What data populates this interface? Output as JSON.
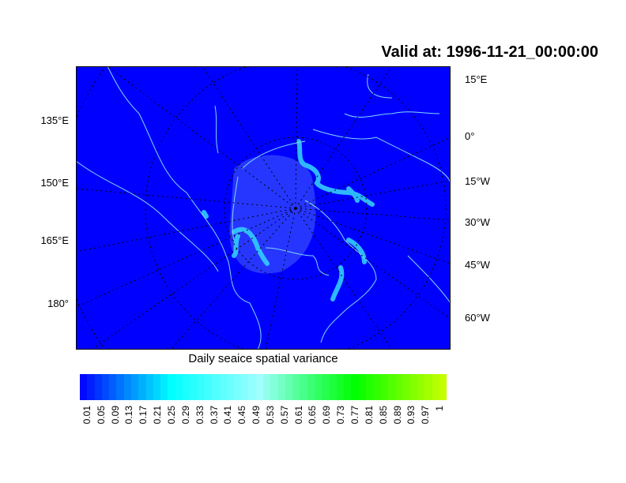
{
  "title": "Valid at: 1996-11-21_00:00:00",
  "map": {
    "projection": "polar stereographic (north)",
    "background_color": "#0000ff",
    "coastline_color": "#7fd8ff",
    "ice_edge_color": "#33ccff",
    "gridlines": "dotted black"
  },
  "left_labels": [
    "135°E",
    "150°E",
    "165°E",
    "180°"
  ],
  "right_labels": [
    "15°E",
    "0°",
    "15°W",
    "30°W",
    "45°W",
    "60°W"
  ],
  "colorbar": {
    "caption": "Daily seaice spatial variance",
    "labels": [
      "0.01",
      "0.05",
      "0.09",
      "0.13",
      "0.17",
      "0.21",
      "0.25",
      "0.29",
      "0.33",
      "0.37",
      "0.41",
      "0.45",
      "0.49",
      "0.53",
      "0.57",
      "0.61",
      "0.65",
      "0.69",
      "0.73",
      "0.77",
      "0.81",
      "0.85",
      "0.89",
      "0.93",
      "0.97",
      "1"
    ],
    "color_stops": [
      "#0000ff",
      "#0088ff",
      "#00ffff",
      "#a0ffff",
      "#40ff80",
      "#00ff00",
      "#ccff00"
    ]
  }
}
